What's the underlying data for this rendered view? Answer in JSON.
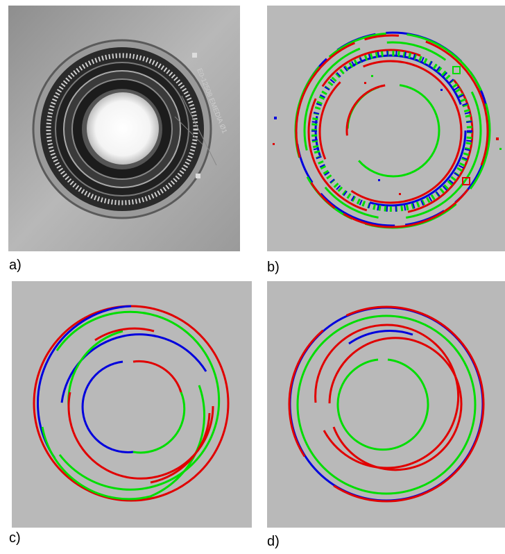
{
  "figure": {
    "panels": [
      {
        "id": "a",
        "caption": "a)",
        "content": "grayscale photo"
      },
      {
        "id": "b",
        "caption": "b)",
        "content": "detected edge fragments"
      },
      {
        "id": "c",
        "caption": "c)",
        "content": "fitted circular arcs"
      },
      {
        "id": "d",
        "caption": "d)",
        "content": "merged circular arcs"
      }
    ],
    "disc_label": "E0-12508 EMEDIA Ø1",
    "colors": {
      "background": "#b9b9b9",
      "red": "#e00000",
      "green": "#00dd00",
      "blue": "#0000dd"
    }
  }
}
